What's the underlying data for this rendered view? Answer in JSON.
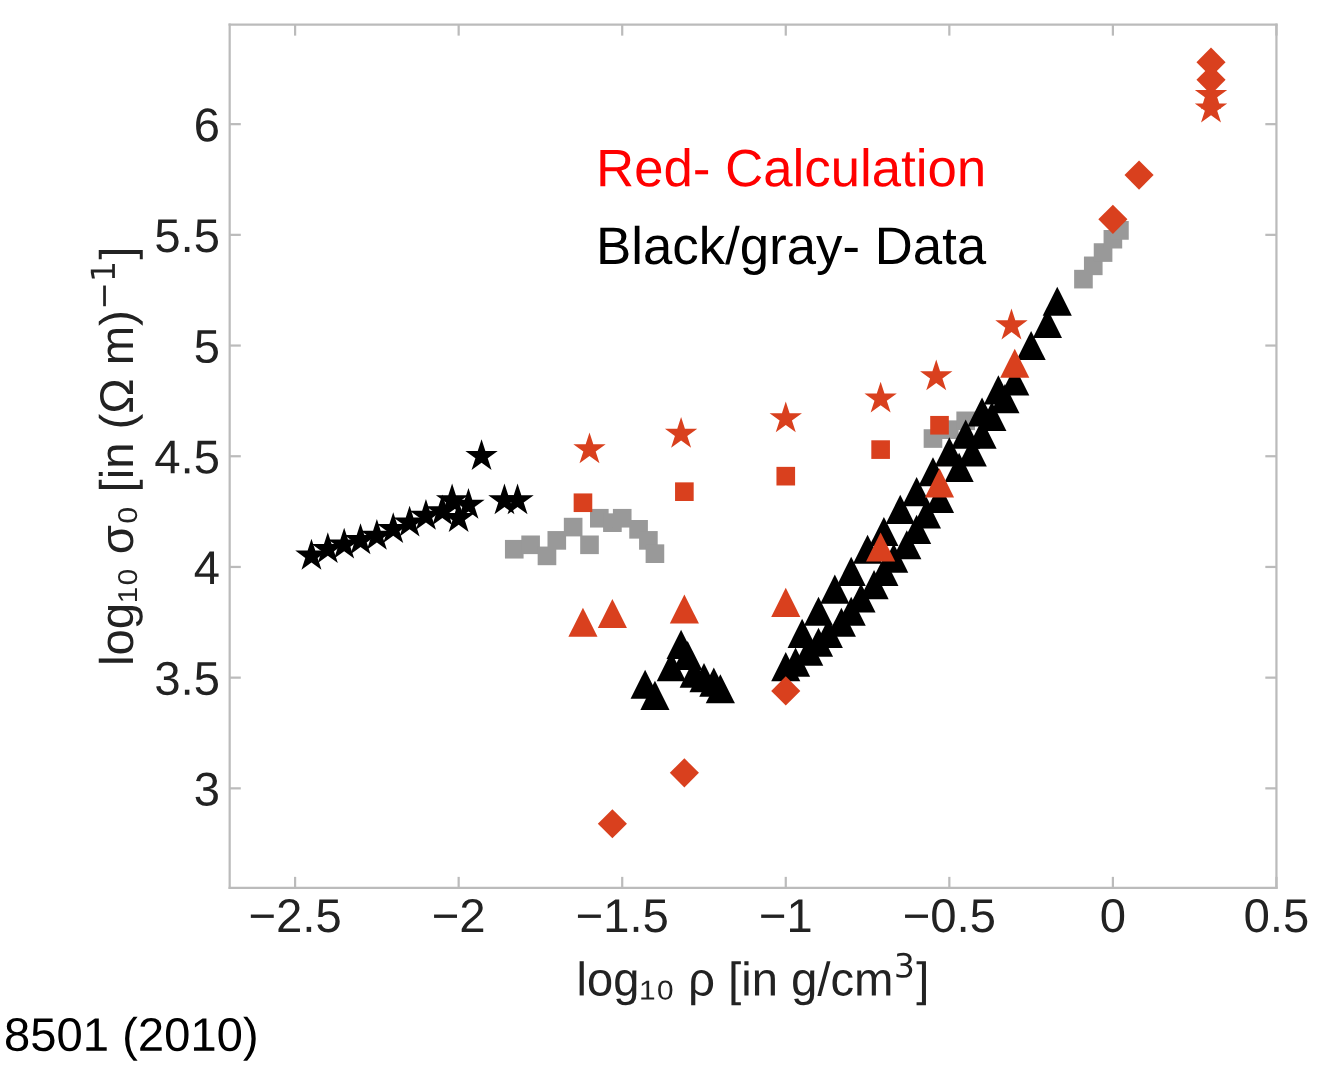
{
  "chart_data": {
    "type": "scatter",
    "xlabel": "log₁₀ ρ [in g/cm$^{3}$]",
    "ylabel": "log₁₀ σ₀ [in (Ω m)$^{−1}$]",
    "xlim": [
      -2.7,
      0.5
    ],
    "ylim": [
      2.55,
      6.45
    ],
    "xticks": [
      {
        "value": -2.5,
        "label": "−2.5"
      },
      {
        "value": -2,
        "label": "−2"
      },
      {
        "value": -1.5,
        "label": "−1.5"
      },
      {
        "value": -1,
        "label": "−1"
      },
      {
        "value": -0.5,
        "label": "−0.5"
      },
      0,
      0.5
    ],
    "yticks": [
      3,
      3.5,
      4,
      4.5,
      5,
      5.5,
      6
    ],
    "grid": false,
    "legend": false,
    "annotations": [
      "Red- Calculation",
      "Black/gray- Data",
      "8501 (2010)"
    ],
    "series": [
      {
        "color": "#000000",
        "marker": "star",
        "x": [
          -2.45,
          -2.4,
          -2.35,
          -2.3,
          -2.25,
          -2.2,
          -2.15,
          -2.1,
          -2.05,
          -2.02,
          -2.0,
          -1.97,
          -1.93,
          -1.86,
          -1.82
        ],
        "values": [
          4.05,
          4.08,
          4.1,
          4.12,
          4.14,
          4.17,
          4.2,
          4.23,
          4.25,
          4.3,
          4.22,
          4.28,
          4.5,
          4.3,
          4.3
        ]
      },
      {
        "color": "#999999",
        "marker": "square",
        "x": [
          -1.83,
          -1.78,
          -1.73,
          -1.7,
          -1.65,
          -1.6,
          -1.57,
          -1.53,
          -1.5,
          -1.45,
          -1.42,
          -1.4,
          -0.55,
          -0.5,
          -0.45,
          -0.09,
          -0.06,
          -0.03,
          0.0,
          0.02
        ],
        "values": [
          4.08,
          4.1,
          4.05,
          4.12,
          4.18,
          4.1,
          4.22,
          4.2,
          4.22,
          4.17,
          4.12,
          4.06,
          4.58,
          4.62,
          4.66,
          5.3,
          5.36,
          5.42,
          5.48,
          5.52
        ]
      },
      {
        "color": "#000000",
        "marker": "triangle",
        "x": [
          -1.43,
          -1.4,
          -1.35,
          -1.32,
          -1.3,
          -1.28,
          -1.25,
          -1.22,
          -1.2,
          -1.0,
          -0.97,
          -0.93,
          -0.9,
          -0.87,
          -0.83,
          -0.8,
          -0.77,
          -0.73,
          -0.7,
          -0.67,
          -0.63,
          -0.6,
          -0.57,
          -0.53,
          -0.5,
          -0.47,
          -0.43,
          -0.4,
          -0.37,
          -0.33,
          -0.3,
          -0.27,
          -0.23,
          -0.2,
          -0.17,
          -0.95,
          -0.9,
          -0.85,
          -0.8,
          -0.75,
          -0.7,
          -0.65,
          -0.6,
          -0.55,
          -0.5,
          -0.45,
          -0.4,
          -0.35,
          -0.3,
          -0.25
        ],
        "values": [
          3.47,
          3.42,
          3.55,
          3.65,
          3.6,
          3.52,
          3.5,
          3.48,
          3.45,
          3.55,
          3.57,
          3.62,
          3.66,
          3.7,
          3.75,
          3.8,
          3.86,
          3.92,
          3.98,
          4.04,
          4.1,
          4.17,
          4.24,
          4.31,
          null,
          4.45,
          4.52,
          4.6,
          4.68,
          4.76,
          4.84,
          null,
          null,
          5.1,
          5.2,
          3.7,
          3.8,
          3.9,
          3.98,
          4.08,
          4.16,
          4.26,
          4.34,
          4.43,
          4.52,
          4.6,
          4.7,
          4.8,
          null,
          5.0
        ]
      },
      {
        "color": "#d9401e",
        "marker": "star",
        "x": [
          -1.6,
          -1.32,
          -1.0,
          -0.71,
          -0.54,
          -0.31,
          0.3,
          0.3
        ],
        "values": [
          4.53,
          4.6,
          4.67,
          4.76,
          4.86,
          5.09,
          6.07,
          6.13
        ]
      },
      {
        "color": "#d9401e",
        "marker": "square",
        "x": [
          -1.62,
          -1.31,
          -1.0,
          -0.71,
          -0.53
        ],
        "values": [
          4.29,
          4.34,
          4.41,
          4.53,
          4.64
        ]
      },
      {
        "color": "#d9401e",
        "marker": "triangle",
        "x": [
          -1.62,
          -1.53,
          -1.31,
          -1.0,
          -0.71,
          -0.53,
          -0.3
        ],
        "values": [
          3.75,
          3.79,
          3.81,
          3.84,
          4.09,
          4.38,
          4.92
        ]
      },
      {
        "color": "#d9401e",
        "marker": "diamond",
        "x": [
          -1.53,
          -1.31,
          -1.0,
          0.0,
          0.08,
          0.3,
          0.3
        ],
        "values": [
          2.84,
          3.07,
          3.44,
          5.57,
          5.77,
          6.2,
          6.28
        ]
      }
    ]
  }
}
